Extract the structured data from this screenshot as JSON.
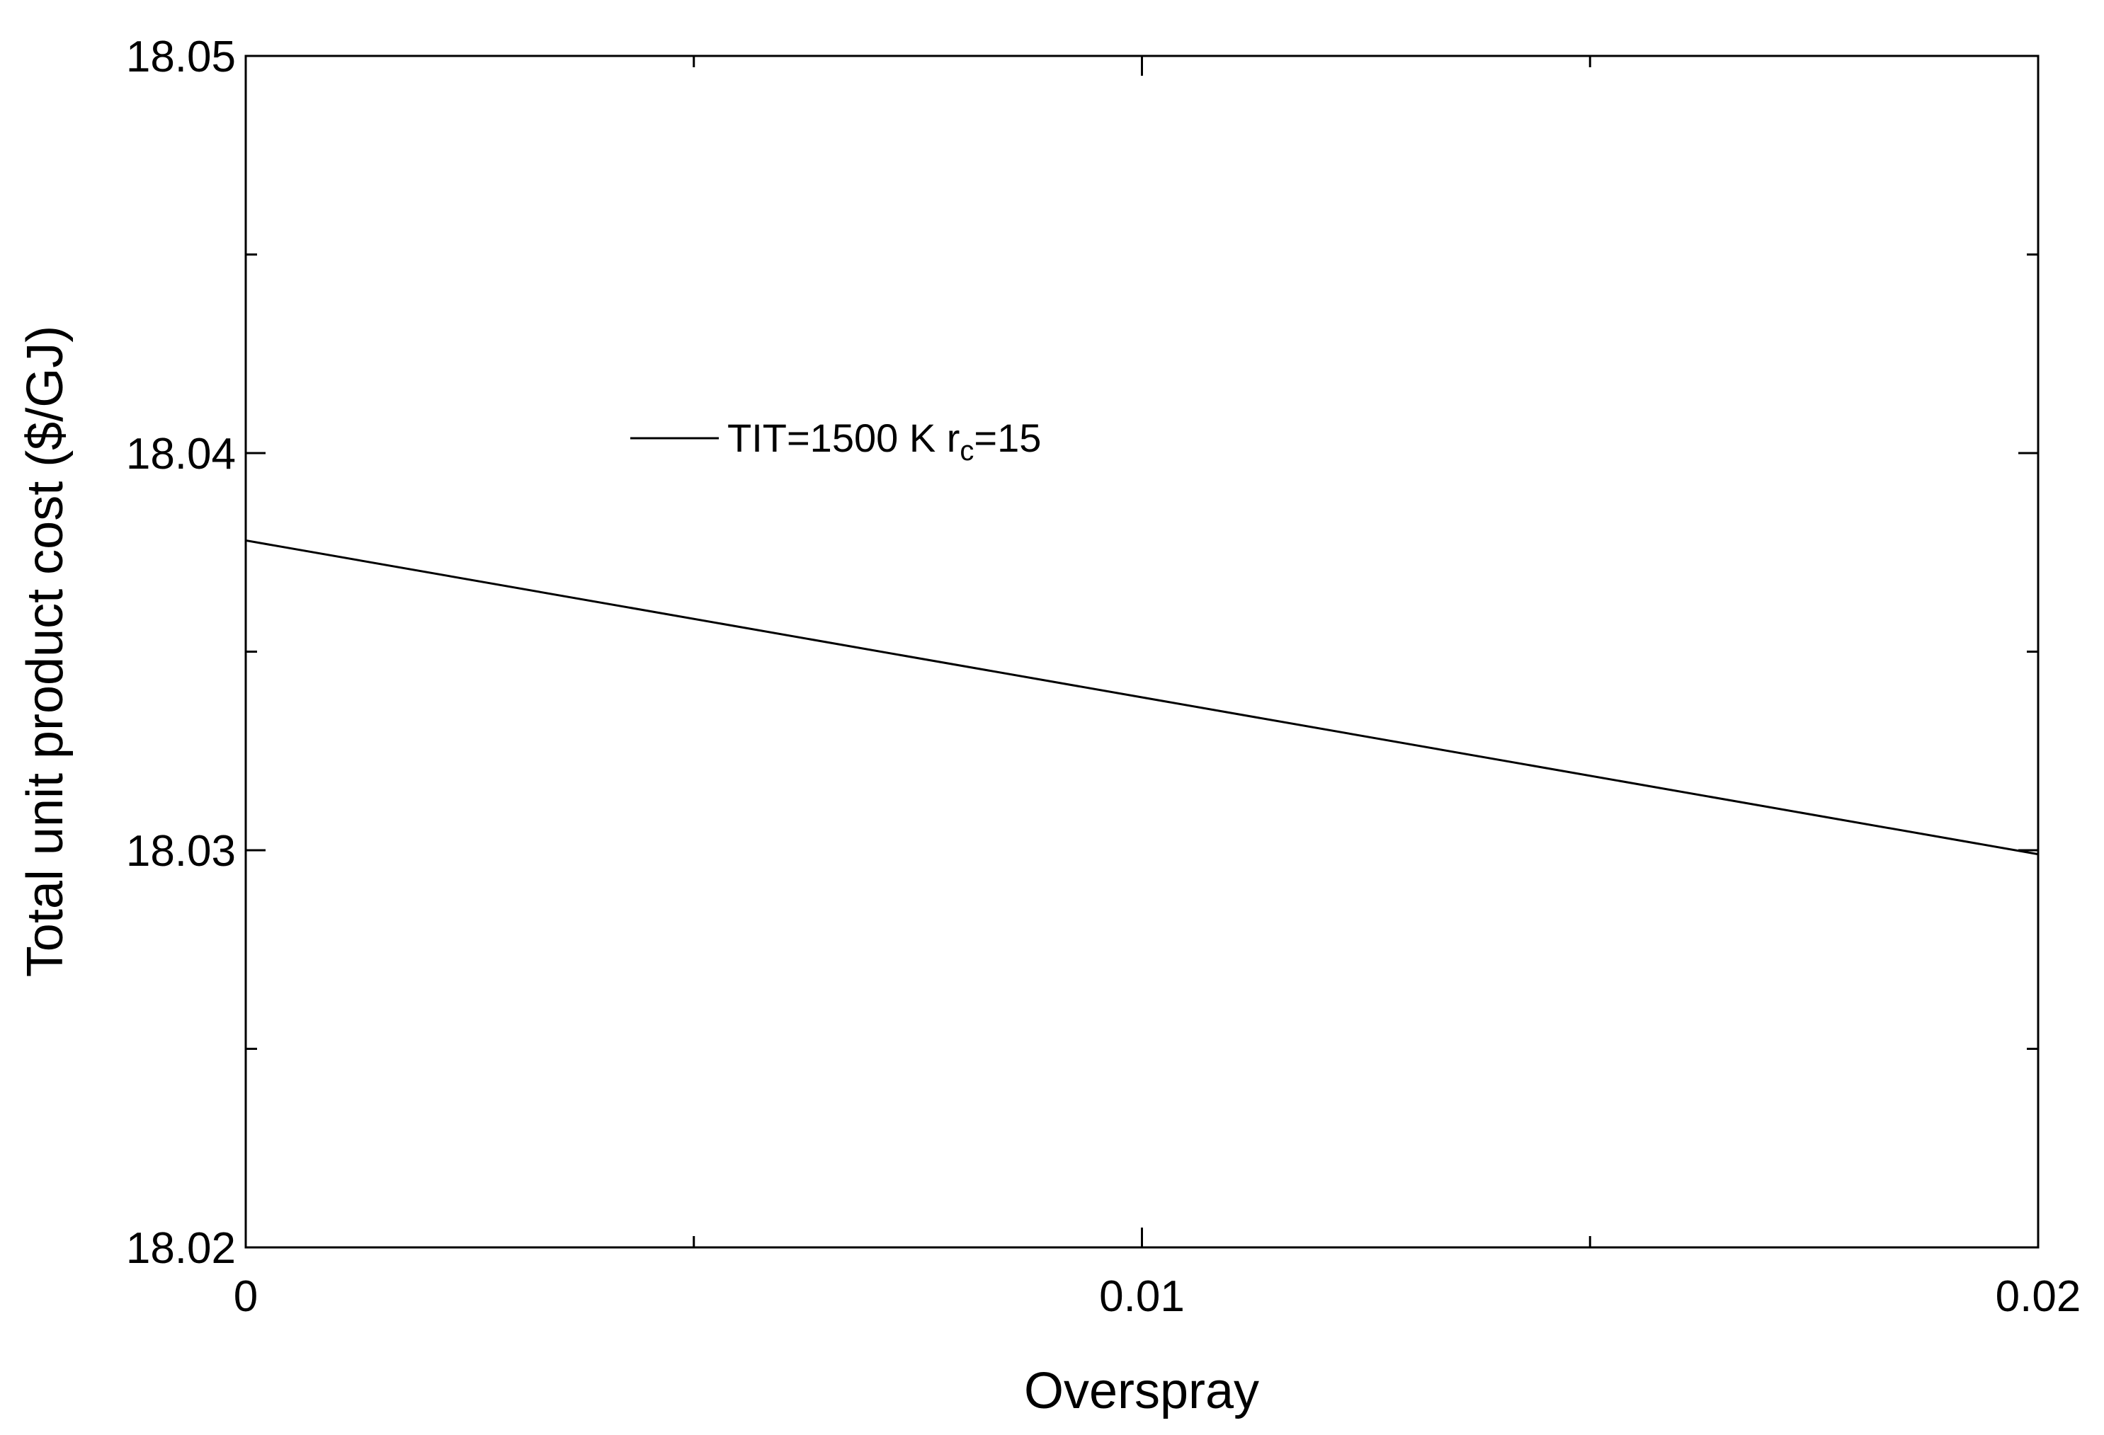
{
  "chart_data": {
    "type": "line",
    "title": "",
    "xlabel": "Overspray",
    "ylabel": "Total unit product cost ($/GJ)",
    "xlim": [
      0,
      0.02
    ],
    "ylim": [
      18.02,
      18.05
    ],
    "x_ticks": [
      0,
      0.01,
      0.02
    ],
    "x_tick_labels": [
      "0",
      "0.01",
      "0.02"
    ],
    "y_ticks": [
      18.02,
      18.03,
      18.04,
      18.05
    ],
    "y_tick_labels": [
      "18.02",
      "18.03",
      "18.04",
      "18.05"
    ],
    "grid": false,
    "legend": {
      "placement": "upper-left",
      "label_main": "TIT=1500 K r",
      "label_sub": "c",
      "label_tail": "=15"
    },
    "series": [
      {
        "name": "TIT=1500 K rc=15",
        "color": "#000000",
        "x": [
          0,
          0.02
        ],
        "y": [
          18.0378,
          18.0299
        ]
      }
    ]
  }
}
